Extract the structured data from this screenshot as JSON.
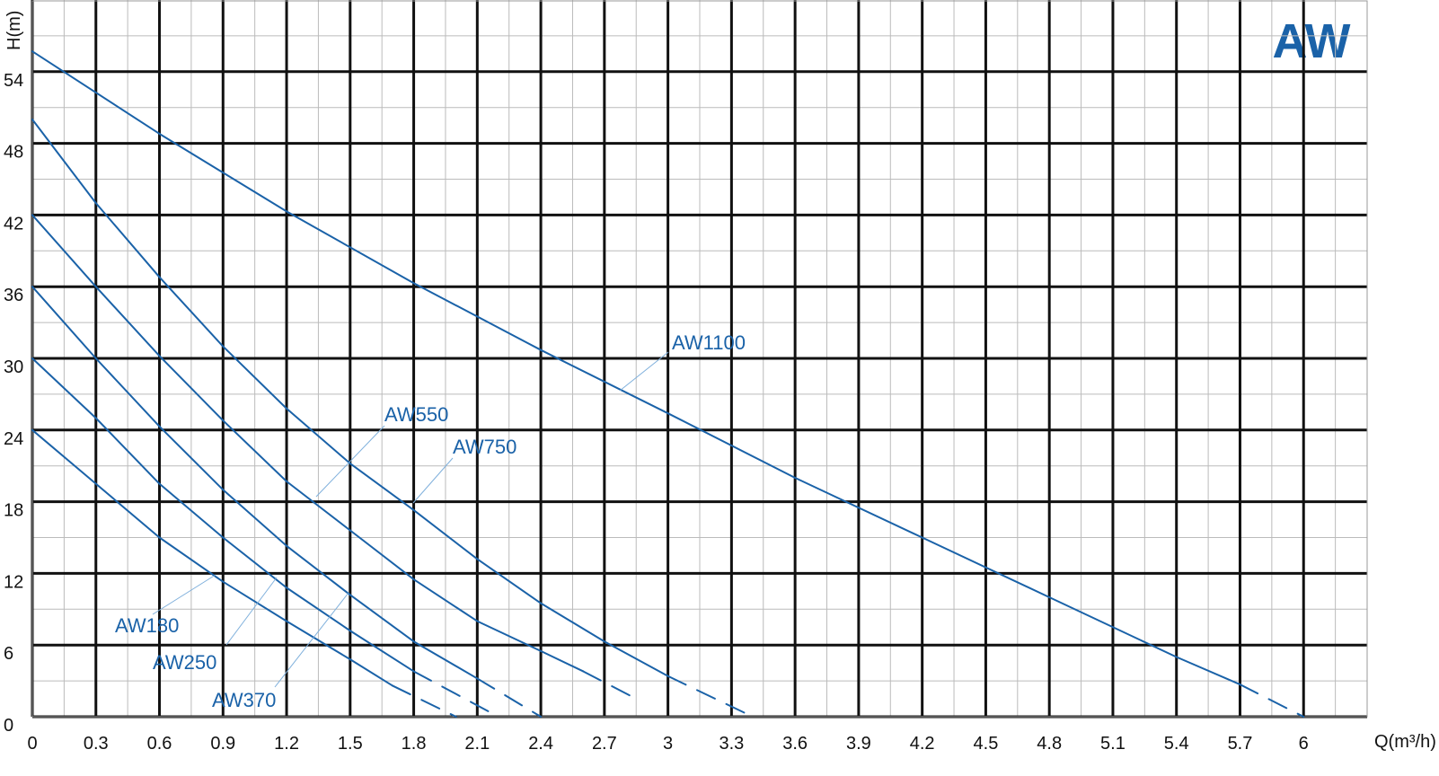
{
  "chart_data": {
    "type": "line",
    "title": "AW",
    "x_label": "Q(m³/h)",
    "y_label": "H(m)",
    "xlim": [
      0,
      6.3
    ],
    "ylim": [
      0,
      60
    ],
    "xticks": [
      0,
      0.3,
      0.6,
      0.9,
      1.2,
      1.5,
      1.8,
      2.1,
      2.4,
      2.7,
      3,
      3.3,
      3.6,
      3.9,
      4.2,
      4.5,
      4.8,
      5.1,
      5.4,
      5.7,
      6
    ],
    "yticks": [
      0,
      6,
      12,
      18,
      24,
      30,
      36,
      42,
      48,
      54
    ],
    "grid": true,
    "color": "#1a62a8",
    "series": [
      {
        "name": "AW180",
        "color": "#1a62a8",
        "x": [
          0,
          0.3,
          0.6,
          0.9,
          1.2,
          1.5,
          1.7,
          2.0
        ],
        "values": [
          24,
          19.5,
          15,
          11.3,
          8,
          4.8,
          2.6,
          0
        ],
        "dashed": [
          false,
          false,
          false,
          false,
          false,
          false,
          false,
          true
        ]
      },
      {
        "name": "AW250",
        "color": "#1a62a8",
        "x": [
          0,
          0.3,
          0.6,
          0.9,
          1.2,
          1.5,
          1.8,
          2.2
        ],
        "values": [
          30,
          25,
          19.5,
          15,
          10.8,
          7.2,
          3.8,
          0
        ],
        "dashed": [
          false,
          false,
          false,
          false,
          false,
          false,
          false,
          true
        ]
      },
      {
        "name": "AW370",
        "color": "#1a62a8",
        "x": [
          0,
          0.3,
          0.6,
          0.9,
          1.2,
          1.5,
          1.8,
          2.1,
          2.4
        ],
        "values": [
          36,
          30,
          24.3,
          19,
          14.3,
          10.2,
          6.3,
          3.2,
          0
        ],
        "dashed": [
          false,
          false,
          false,
          false,
          false,
          false,
          false,
          false,
          true
        ]
      },
      {
        "name": "AW550",
        "color": "#1a62a8",
        "x": [
          0,
          0.3,
          0.6,
          0.9,
          1.2,
          1.5,
          1.8,
          2.1,
          2.4,
          2.6,
          2.85
        ],
        "values": [
          42,
          36,
          30.2,
          24.8,
          19.7,
          15.6,
          11.5,
          8,
          5.5,
          3.8,
          1.5
        ],
        "dashed": [
          false,
          false,
          false,
          false,
          false,
          false,
          false,
          false,
          false,
          false,
          true
        ]
      },
      {
        "name": "AW750",
        "color": "#1a62a8",
        "x": [
          0,
          0.3,
          0.6,
          0.9,
          1.2,
          1.5,
          1.8,
          2.1,
          2.4,
          2.7,
          3,
          3.4
        ],
        "values": [
          50,
          43,
          36.8,
          31,
          25.8,
          21.2,
          17.3,
          13.2,
          9.5,
          6.3,
          3.4,
          0
        ],
        "dashed": [
          false,
          false,
          false,
          false,
          false,
          false,
          false,
          false,
          false,
          false,
          false,
          true
        ]
      },
      {
        "name": "AW1100",
        "color": "#1a62a8",
        "x": [
          0,
          0.6,
          1.2,
          1.8,
          2.4,
          3,
          3.6,
          4.2,
          4.8,
          5.4,
          5.7,
          6
        ],
        "values": [
          55.7,
          48.8,
          42.3,
          36.3,
          30.7,
          25.4,
          20,
          15,
          10,
          5,
          2.7,
          0
        ],
        "dashed": [
          false,
          false,
          false,
          false,
          false,
          false,
          false,
          false,
          false,
          false,
          false,
          true
        ]
      }
    ]
  }
}
